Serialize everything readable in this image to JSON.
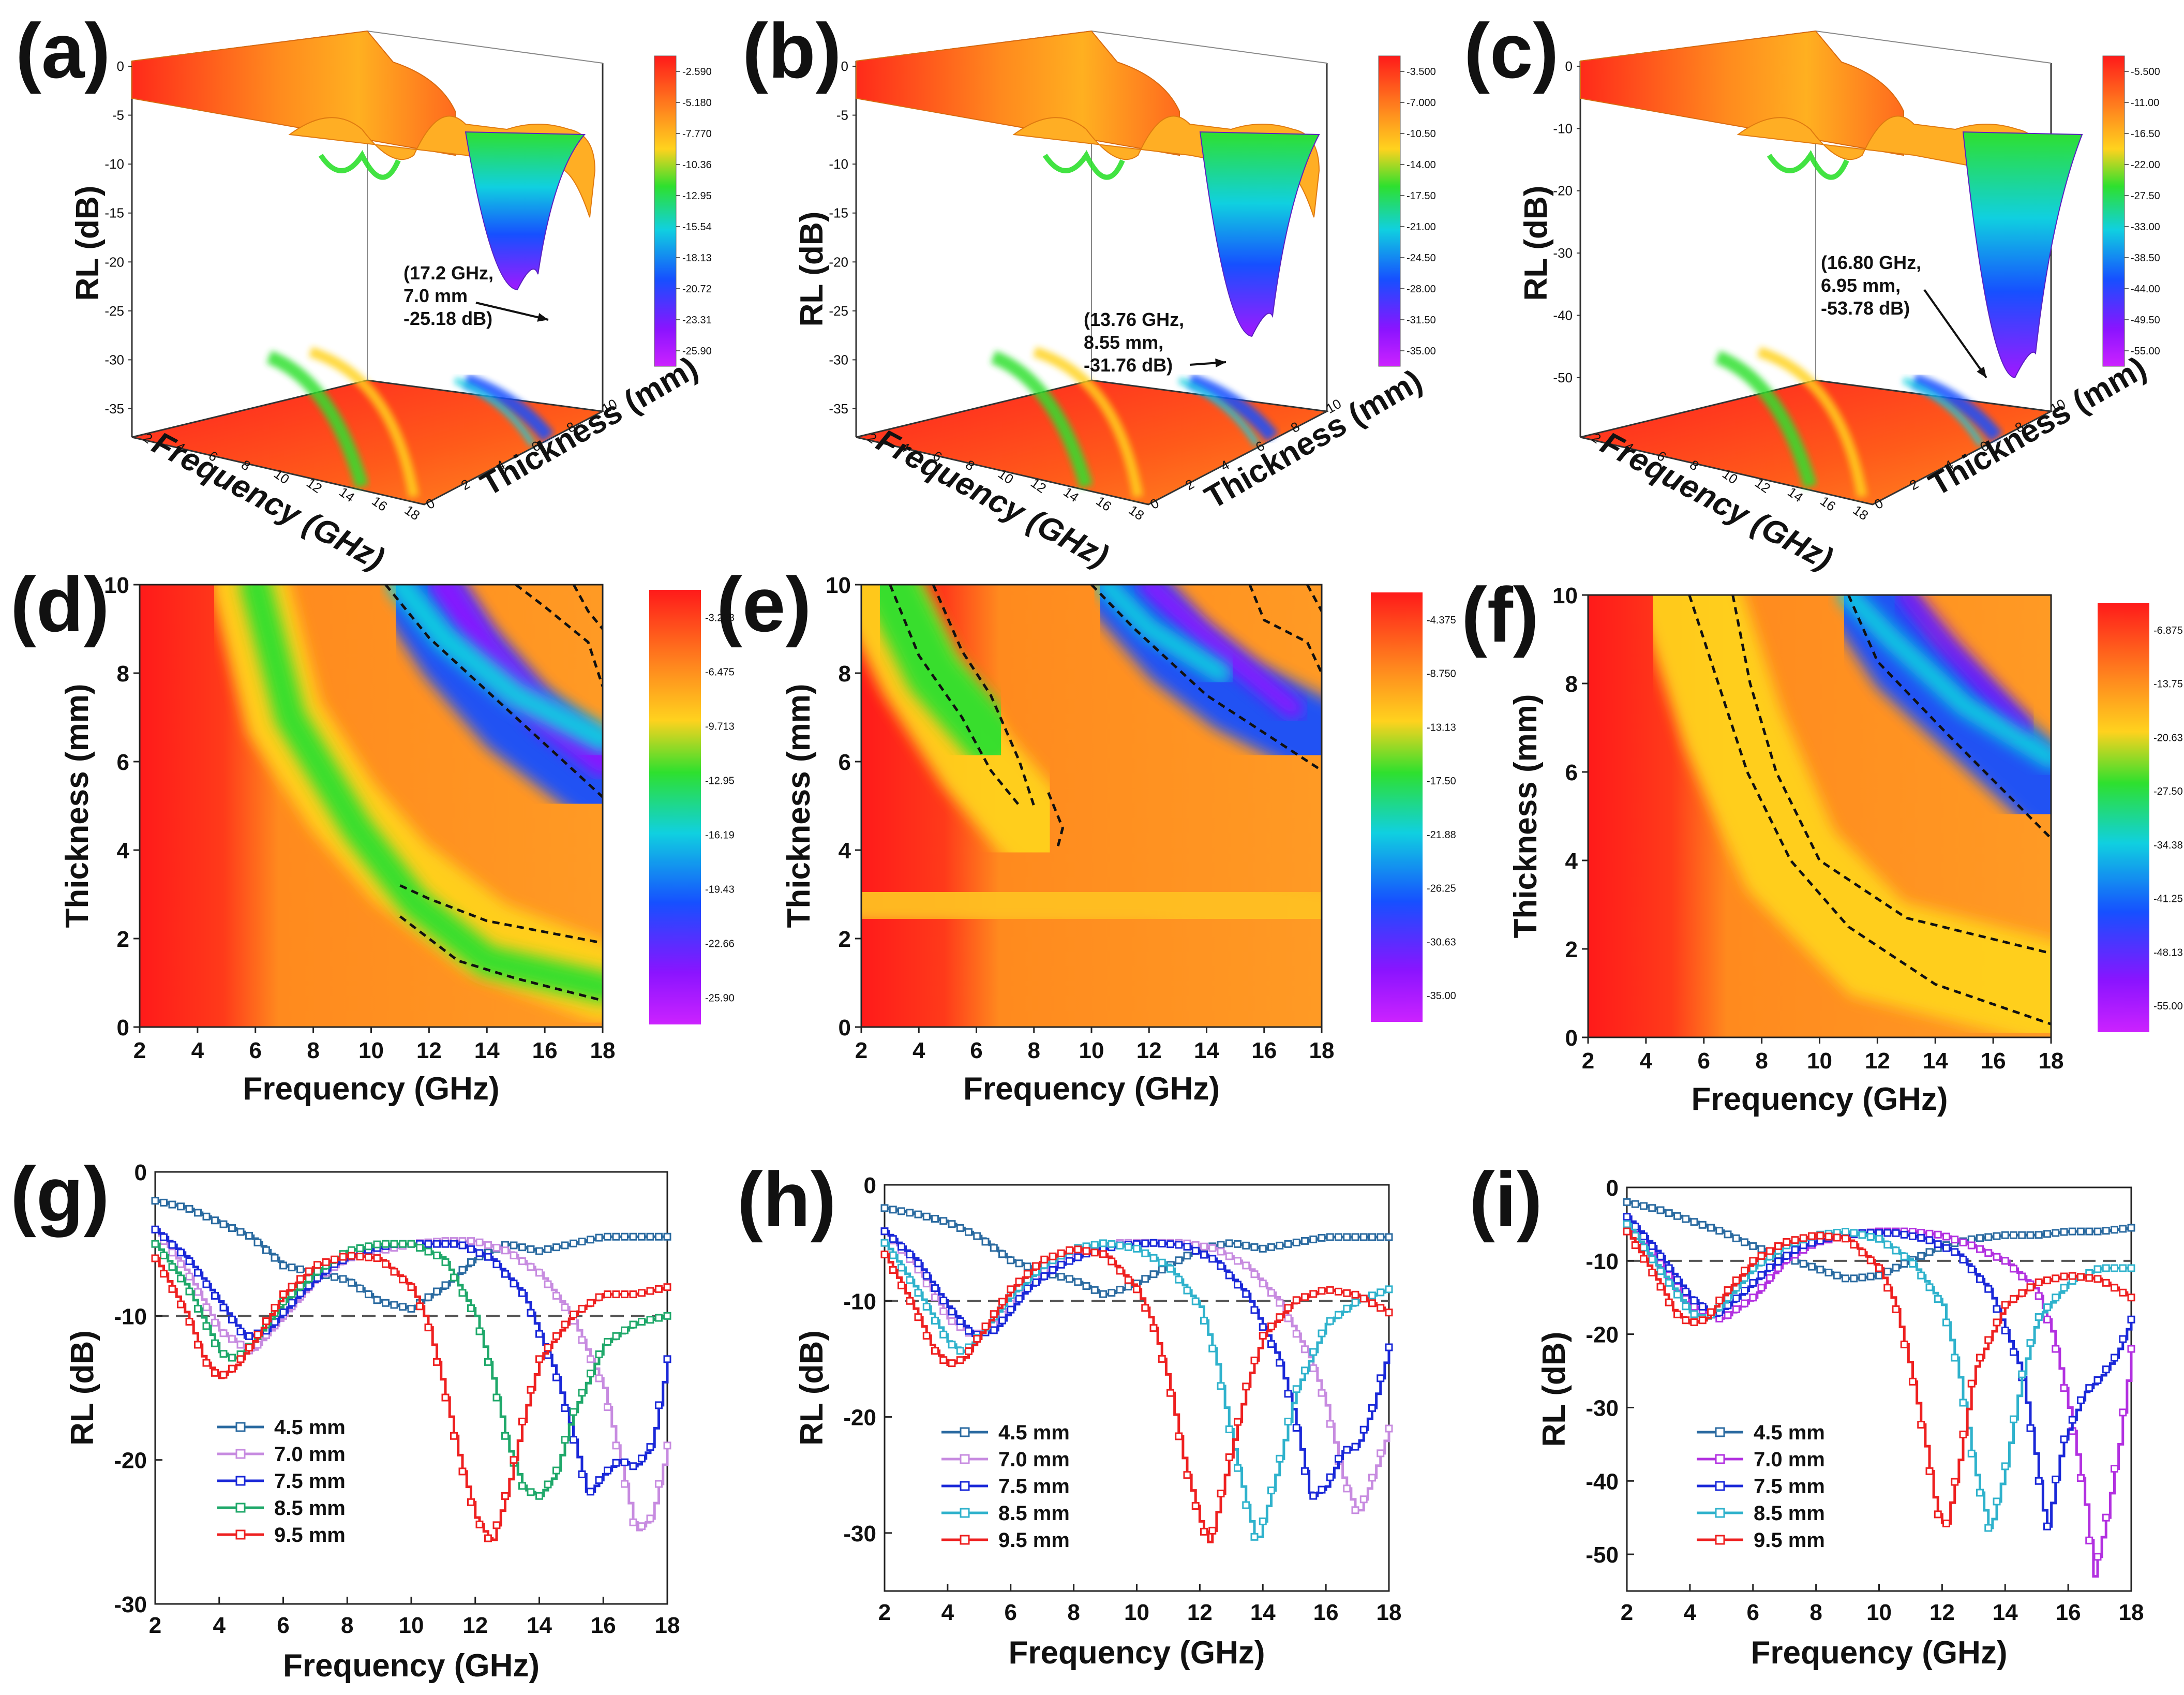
{
  "panel_labels": [
    "(a)",
    "(b)",
    "(c)",
    "(d)",
    "(e)",
    "(f)",
    "(g)",
    "(h)",
    "(i)"
  ],
  "colors": {
    "colormap": [
      "#ff1a1a",
      "#ff8a1e",
      "#ffd21e",
      "#2ee02e",
      "#10d0e0",
      "#1650ff",
      "#8a14ff",
      "#cc22ff"
    ],
    "series": {
      "4.5 mm": "#2a6aa0",
      "7.0 mm": "#c78be0",
      "7.0 mm (i)": "#b230e0",
      "7.5 mm": "#1a28d8",
      "8.5 mm (g)": "#1fa86a",
      "8.5 mm": "#2fb2cc",
      "9.5 mm": "#ee2020"
    },
    "reference_line": "#555555",
    "contour": "#111111"
  },
  "chart_data": [
    {
      "panel": "(a)",
      "type": "surface3d",
      "xlabel": "Frequency (GHz)",
      "ylabel": "Thickness (mm)",
      "zlabel": "RL (dB)",
      "x_ticks": [
        "2",
        "4",
        "6",
        "8",
        "10",
        "12",
        "14",
        "16",
        "18"
      ],
      "y_ticks": [
        "0",
        "2",
        "4",
        "6",
        "8",
        "10"
      ],
      "z_ticks": [
        "0",
        "-5",
        "-10",
        "-15",
        "-20",
        "-25",
        "-30",
        "-35"
      ],
      "zlim": [
        -35,
        0
      ],
      "colorbar": [
        "-2.590",
        "-5.180",
        "-7.770",
        "-10.36",
        "-12.95",
        "-15.54",
        "-18.13",
        "-20.72",
        "-23.31",
        "-25.90"
      ],
      "annotation": [
        "(17.2 GHz,",
        "7.0 mm",
        "-25.18 dB)"
      ],
      "min_point": {
        "frequency": 17.2,
        "thickness": 7.0,
        "rl": -25.18
      }
    },
    {
      "panel": "(b)",
      "type": "surface3d",
      "xlabel": "Frequency (GHz)",
      "ylabel": "Thickness (mm)",
      "zlabel": "RL (dB)",
      "x_ticks": [
        "2",
        "4",
        "6",
        "8",
        "10",
        "12",
        "14",
        "16",
        "18"
      ],
      "y_ticks": [
        "0",
        "2",
        "4",
        "6",
        "8",
        "10"
      ],
      "z_ticks": [
        "0",
        "-5",
        "-10",
        "-15",
        "-20",
        "-25",
        "-30",
        "-35"
      ],
      "zlim": [
        -35,
        0
      ],
      "colorbar": [
        "-3.500",
        "-7.000",
        "-10.50",
        "-14.00",
        "-17.50",
        "-21.00",
        "-24.50",
        "-28.00",
        "-31.50",
        "-35.00"
      ],
      "annotation": [
        "(13.76 GHz,",
        "8.55 mm,",
        "-31.76 dB)"
      ],
      "min_point": {
        "frequency": 13.76,
        "thickness": 8.55,
        "rl": -31.76
      }
    },
    {
      "panel": "(c)",
      "type": "surface3d",
      "xlabel": "Frequency (GHz)",
      "ylabel": "Thickness (mm)",
      "zlabel": "RL (dB)",
      "x_ticks": [
        "2",
        "4",
        "6",
        "8",
        "10",
        "12",
        "14",
        "16",
        "18"
      ],
      "y_ticks": [
        "0",
        "2",
        "4",
        "6",
        "8",
        "10"
      ],
      "z_ticks": [
        "0",
        "-10",
        "-20",
        "-30",
        "-40",
        "-50"
      ],
      "zlim": [
        -55,
        0
      ],
      "colorbar": [
        "-5.500",
        "-11.00",
        "-16.50",
        "-22.00",
        "-27.50",
        "-33.00",
        "-38.50",
        "-44.00",
        "-49.50",
        "-55.00"
      ],
      "annotation": [
        "(16.80 GHz,",
        "6.95 mm,",
        "-53.78 dB)"
      ],
      "min_point": {
        "frequency": 16.8,
        "thickness": 6.95,
        "rl": -53.78
      }
    },
    {
      "panel": "(d)",
      "type": "heatmap",
      "xlabel": "Frequency (GHz)",
      "ylabel": "Thickness (mm)",
      "xlim": [
        2,
        18
      ],
      "ylim": [
        0,
        10
      ],
      "x_ticks": [
        "2",
        "4",
        "6",
        "8",
        "10",
        "12",
        "14",
        "16",
        "18"
      ],
      "y_ticks": [
        "0",
        "2",
        "4",
        "6",
        "8",
        "10"
      ],
      "colorbar": [
        "-3.238",
        "-6.475",
        "-9.713",
        "-12.95",
        "-16.19",
        "-19.43",
        "-22.66",
        "-25.90"
      ],
      "contour_level": -10
    },
    {
      "panel": "(e)",
      "type": "heatmap",
      "xlabel": "Frequency (GHz)",
      "ylabel": "Thickness (mm)",
      "xlim": [
        2,
        18
      ],
      "ylim": [
        0,
        10
      ],
      "x_ticks": [
        "2",
        "4",
        "6",
        "8",
        "10",
        "12",
        "14",
        "16",
        "18"
      ],
      "y_ticks": [
        "0",
        "2",
        "4",
        "6",
        "8",
        "10"
      ],
      "colorbar": [
        "-4.375",
        "-8.750",
        "-13.13",
        "-17.50",
        "-21.88",
        "-26.25",
        "-30.63",
        "-35.00"
      ],
      "contour_level": -10
    },
    {
      "panel": "(f)",
      "type": "heatmap",
      "xlabel": "Frequency (GHz)",
      "ylabel": "Thickness (mm)",
      "xlim": [
        2,
        18
      ],
      "ylim": [
        0,
        10
      ],
      "x_ticks": [
        "2",
        "4",
        "6",
        "8",
        "10",
        "12",
        "14",
        "16",
        "18"
      ],
      "y_ticks": [
        "0",
        "2",
        "4",
        "6",
        "8",
        "10"
      ],
      "colorbar": [
        "-6.875",
        "-13.75",
        "-20.63",
        "-27.50",
        "-34.38",
        "-41.25",
        "-48.13",
        "-55.00"
      ],
      "contour_level": -10
    },
    {
      "panel": "(g)",
      "type": "line",
      "xlabel": "Frequency (GHz)",
      "ylabel": "RL (dB)",
      "xlim": [
        2,
        18
      ],
      "ylim": [
        -30,
        0
      ],
      "x_ticks": [
        "2",
        "4",
        "6",
        "8",
        "10",
        "12",
        "14",
        "16",
        "18"
      ],
      "y_ticks": [
        "0",
        "-10",
        "-20",
        "-30"
      ],
      "reference_y": -10,
      "series": [
        {
          "name": "4.5 mm",
          "color": "#2a6aa0",
          "x": [
            2,
            3,
            4,
            5,
            6,
            7,
            8,
            9,
            10,
            11,
            12,
            13,
            14,
            15,
            16,
            17,
            18
          ],
          "y": [
            -2,
            -2.5,
            -3.5,
            -4.5,
            -6.5,
            -7,
            -7.5,
            -9,
            -9.5,
            -8,
            -6,
            -5,
            -5.5,
            -5,
            -4.5,
            -4.5,
            -4.5
          ]
        },
        {
          "name": "7.0 mm",
          "color": "#c78be0",
          "x": [
            2,
            3,
            4,
            5,
            6,
            7,
            8,
            9,
            10,
            11,
            12,
            13,
            14,
            15,
            16,
            16.5,
            17,
            17.5,
            18
          ],
          "y": [
            -4,
            -7,
            -11,
            -12.5,
            -10,
            -7.5,
            -6,
            -5.5,
            -5,
            -4.8,
            -4.8,
            -5.5,
            -7,
            -10,
            -15,
            -20,
            -25,
            -24,
            -19
          ]
        },
        {
          "name": "7.5 mm",
          "color": "#1a28d8",
          "x": [
            2,
            3,
            4,
            4.8,
            5.5,
            6.5,
            7.5,
            8.5,
            9.5,
            10.5,
            11.5,
            12.5,
            13.5,
            14.5,
            15,
            15.5,
            16,
            16.5,
            17,
            17.5,
            18
          ],
          "y": [
            -4,
            -6,
            -9,
            -11.5,
            -11,
            -8.5,
            -6.5,
            -5.5,
            -5,
            -5,
            -5,
            -6,
            -8.5,
            -14,
            -18,
            -22.5,
            -21,
            -20,
            -20.5,
            -19,
            -13
          ]
        },
        {
          "name": "8.5 mm",
          "color": "#1fa86a",
          "x": [
            2,
            3,
            4,
            4.5,
            5,
            6,
            7,
            8,
            9,
            10,
            11,
            12,
            12.5,
            13,
            13.5,
            14,
            14.5,
            15,
            16,
            17,
            18
          ],
          "y": [
            -5,
            -8,
            -12.5,
            -13,
            -12,
            -9,
            -7,
            -5.5,
            -5,
            -5,
            -6,
            -10,
            -14,
            -19,
            -22,
            -22.5,
            -21,
            -17,
            -12,
            -10.5,
            -10
          ]
        },
        {
          "name": "9.5 mm",
          "color": "#ee2020",
          "x": [
            2,
            3,
            3.5,
            4,
            4.5,
            5,
            6,
            7,
            8,
            9,
            10,
            10.5,
            11,
            11.5,
            12,
            12.5,
            13,
            13.5,
            14,
            15,
            16,
            17,
            18
          ],
          "y": [
            -6,
            -10,
            -13,
            -14.3,
            -13.5,
            -12,
            -8.5,
            -6.5,
            -5.8,
            -6,
            -8,
            -10.5,
            -15,
            -20,
            -24,
            -25.8,
            -22,
            -17,
            -13,
            -10,
            -8.5,
            -8.5,
            -8
          ]
        }
      ],
      "legend": [
        "4.5 mm",
        "7.0 mm",
        "7.5 mm",
        "8.5 mm",
        "9.5 mm"
      ]
    },
    {
      "panel": "(h)",
      "type": "line",
      "xlabel": "Frequency (GHz)",
      "ylabel": "RL (dB)",
      "xlim": [
        2,
        18
      ],
      "ylim": [
        -35,
        0
      ],
      "x_ticks": [
        "2",
        "4",
        "6",
        "8",
        "10",
        "12",
        "14",
        "16",
        "18"
      ],
      "y_ticks": [
        "0",
        "-10",
        "-20",
        "-30"
      ],
      "reference_y": -10,
      "series": [
        {
          "name": "4.5 mm",
          "color": "#2a6aa0",
          "x": [
            2,
            3,
            4,
            5,
            6,
            7,
            8,
            9,
            10,
            11,
            12,
            13,
            14,
            15,
            16,
            17,
            18
          ],
          "y": [
            -2,
            -2.5,
            -3.2,
            -4.5,
            -6.5,
            -7.5,
            -8.2,
            -9.5,
            -8.5,
            -7,
            -5.5,
            -5,
            -5.5,
            -5,
            -4.5,
            -4.5,
            -4.5
          ]
        },
        {
          "name": "7.0 mm",
          "color": "#c78be0",
          "x": [
            2,
            3,
            4,
            4.8,
            5.5,
            6.5,
            7.5,
            8.5,
            9.5,
            10.5,
            11.5,
            12.5,
            13.5,
            14.5,
            15.5,
            16,
            16.5,
            17,
            17.5,
            18
          ],
          "y": [
            -4,
            -7,
            -11.5,
            -13,
            -12,
            -8.5,
            -6.5,
            -5.5,
            -5,
            -5,
            -5,
            -5.5,
            -7,
            -10,
            -15,
            -19,
            -25,
            -28.5,
            -25,
            -21
          ]
        },
        {
          "name": "7.5 mm",
          "color": "#1a28d8",
          "x": [
            2,
            3,
            4,
            4.8,
            5.5,
            6.5,
            7.5,
            8.5,
            9.5,
            10.5,
            11.5,
            12.5,
            13.5,
            14.5,
            15,
            15.5,
            16,
            16.5,
            17,
            17.5,
            18
          ],
          "y": [
            -4,
            -6.5,
            -10.5,
            -13,
            -12.5,
            -9,
            -7,
            -5.8,
            -5.2,
            -5,
            -5.2,
            -6.5,
            -9.5,
            -15,
            -20,
            -27,
            -26,
            -23,
            -22.5,
            -19,
            -14
          ]
        },
        {
          "name": "8.5 mm",
          "color": "#2fb2cc",
          "x": [
            2,
            3,
            4,
            4.5,
            5,
            6,
            7,
            8,
            9,
            10,
            11,
            12,
            12.5,
            13,
            13.5,
            13.8,
            14.5,
            15,
            16,
            17,
            18
          ],
          "y": [
            -5,
            -9,
            -13.5,
            -14.5,
            -13,
            -9.5,
            -7,
            -5.5,
            -5,
            -5.5,
            -7,
            -10.5,
            -15,
            -22,
            -28,
            -31,
            -24,
            -18,
            -12,
            -10,
            -9
          ]
        },
        {
          "name": "9.5 mm",
          "color": "#ee2020",
          "x": [
            2,
            3,
            3.5,
            4,
            4.5,
            5,
            6,
            7,
            8,
            9,
            10,
            10.5,
            11,
            11.5,
            12,
            12.3,
            12.8,
            13.5,
            14,
            15,
            16,
            17,
            18
          ],
          "y": [
            -6,
            -11,
            -14,
            -15.5,
            -15,
            -13,
            -9,
            -6.5,
            -5.5,
            -6,
            -9,
            -12,
            -17,
            -24,
            -29,
            -31,
            -25,
            -17,
            -13,
            -10,
            -9,
            -9.5,
            -11
          ]
        }
      ],
      "legend": [
        "4.5 mm",
        "7.0 mm",
        "7.5 mm",
        "8.5 mm",
        "9.5 mm"
      ]
    },
    {
      "panel": "(i)",
      "type": "line",
      "xlabel": "Frequency (GHz)",
      "ylabel": "RL (dB)",
      "xlim": [
        2,
        18
      ],
      "ylim": [
        -55,
        0
      ],
      "x_ticks": [
        "2",
        "4",
        "6",
        "8",
        "10",
        "12",
        "14",
        "16",
        "18"
      ],
      "y_ticks": [
        "0",
        "-10",
        "-20",
        "-30",
        "-40",
        "-50"
      ],
      "reference_y": -10,
      "series": [
        {
          "name": "4.5 mm",
          "color": "#2a6aa0",
          "x": [
            2,
            3,
            4,
            5,
            6,
            7,
            8,
            9,
            10,
            11,
            12,
            13,
            14,
            15,
            16,
            17,
            18
          ],
          "y": [
            -2,
            -3,
            -4.5,
            -6,
            -8,
            -9.5,
            -11,
            -12.5,
            -12,
            -10,
            -8,
            -7,
            -6.5,
            -6.5,
            -6,
            -6,
            -5.5
          ]
        },
        {
          "name": "7.0 mm",
          "color": "#b230e0",
          "x": [
            2,
            3,
            4,
            5,
            6,
            7,
            8,
            9,
            10,
            11,
            12,
            13,
            14,
            15,
            15.5,
            16,
            16.5,
            16.8,
            17.2,
            17.6,
            18
          ],
          "y": [
            -4,
            -10,
            -16,
            -18,
            -15,
            -10,
            -7.5,
            -6.5,
            -6,
            -6,
            -6.5,
            -8,
            -10,
            -14,
            -20,
            -30,
            -42,
            -53,
            -45,
            -35,
            -22
          ]
        },
        {
          "name": "7.5 mm",
          "color": "#1a28d8",
          "x": [
            2,
            3,
            4,
            4.8,
            5.5,
            6.5,
            7.5,
            8.5,
            9.5,
            10.5,
            11.5,
            12.5,
            13.5,
            14.5,
            15,
            15.3,
            15.8,
            16.5,
            17,
            17.5,
            18
          ],
          "y": [
            -4,
            -9,
            -15,
            -17.5,
            -15,
            -11,
            -8,
            -6.8,
            -6.2,
            -6.2,
            -7,
            -9,
            -14,
            -25,
            -38,
            -47,
            -35,
            -28,
            -26,
            -23,
            -18
          ]
        },
        {
          "name": "8.5 mm",
          "color": "#2fb2cc",
          "x": [
            2,
            3,
            4,
            4.5,
            5,
            6,
            7,
            8,
            9,
            10,
            11,
            12,
            12.5,
            13,
            13.5,
            14,
            14.5,
            15,
            16,
            17,
            18
          ],
          "y": [
            -5,
            -11,
            -17,
            -18,
            -16,
            -11,
            -8,
            -6.5,
            -6,
            -7,
            -10,
            -16,
            -25,
            -38,
            -47,
            -38,
            -26,
            -18,
            -13,
            -11,
            -11
          ]
        },
        {
          "name": "9.5 mm",
          "color": "#ee2020",
          "x": [
            2,
            3,
            3.5,
            4,
            4.5,
            5,
            6,
            7,
            8,
            9,
            10,
            10.5,
            11,
            11.5,
            11.8,
            12.1,
            12.5,
            13,
            14,
            15,
            16,
            17,
            18
          ],
          "y": [
            -6,
            -13,
            -17,
            -18.5,
            -18,
            -15,
            -10,
            -7.5,
            -6.5,
            -7,
            -11,
            -16,
            -25,
            -36,
            -44,
            -46.5,
            -38,
            -25,
            -16,
            -13,
            -12,
            -12.5,
            -15
          ]
        }
      ],
      "legend": [
        "4.5 mm",
        "7.0 mm",
        "7.5 mm",
        "8.5 mm",
        "9.5 mm"
      ]
    }
  ]
}
